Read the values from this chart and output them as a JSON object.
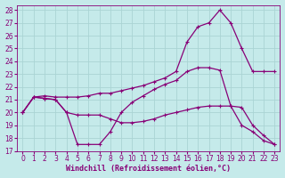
{
  "xlabel": "Windchill (Refroidissement éolien,°C)",
  "background_color": "#c5eaea",
  "grid_color": "#aad4d4",
  "line_color": "#880077",
  "xlim": [
    -0.5,
    23.5
  ],
  "ylim": [
    17,
    28.4
  ],
  "xticks": [
    0,
    1,
    2,
    3,
    4,
    5,
    6,
    7,
    8,
    9,
    10,
    11,
    12,
    13,
    14,
    15,
    16,
    17,
    18,
    19,
    20,
    21,
    22,
    23
  ],
  "yticks": [
    17,
    18,
    19,
    20,
    21,
    22,
    23,
    24,
    25,
    26,
    27,
    28
  ],
  "line1_x": [
    0,
    1,
    2,
    3,
    4,
    5,
    6,
    7,
    8,
    9,
    10,
    11,
    12,
    13,
    14,
    15,
    16,
    17,
    18,
    19,
    20,
    21,
    22,
    23
  ],
  "line1_y": [
    20.0,
    21.2,
    21.1,
    21.0,
    20.0,
    17.5,
    17.5,
    17.5,
    18.5,
    20.0,
    20.8,
    21.3,
    21.8,
    22.2,
    22.5,
    23.2,
    23.5,
    23.5,
    23.3,
    20.5,
    19.0,
    18.5,
    17.8,
    17.5
  ],
  "line2_x": [
    0,
    1,
    2,
    3,
    4,
    5,
    6,
    7,
    8,
    9,
    10,
    11,
    12,
    13,
    14,
    15,
    16,
    17,
    18,
    19,
    20,
    21,
    22,
    23
  ],
  "line2_y": [
    20.0,
    21.2,
    21.1,
    21.0,
    20.0,
    19.8,
    19.8,
    19.8,
    19.5,
    19.2,
    19.2,
    19.3,
    19.5,
    19.8,
    20.0,
    20.2,
    20.4,
    20.5,
    20.5,
    20.5,
    20.4,
    19.0,
    18.2,
    17.5
  ],
  "line3_x": [
    0,
    1,
    2,
    3,
    4,
    5,
    6,
    7,
    8,
    9,
    10,
    11,
    12,
    13,
    14,
    15,
    16,
    17,
    18,
    19,
    20,
    21,
    22,
    23
  ],
  "line3_y": [
    20.0,
    21.2,
    21.3,
    21.2,
    21.2,
    21.2,
    21.3,
    21.5,
    21.5,
    21.7,
    21.9,
    22.1,
    22.4,
    22.7,
    23.2,
    25.5,
    26.7,
    27.0,
    28.0,
    27.0,
    25.0,
    23.2,
    23.2,
    23.2
  ],
  "linewidth": 0.9,
  "markersize": 3,
  "tick_fontsize": 5.5,
  "label_fontsize": 6.0
}
